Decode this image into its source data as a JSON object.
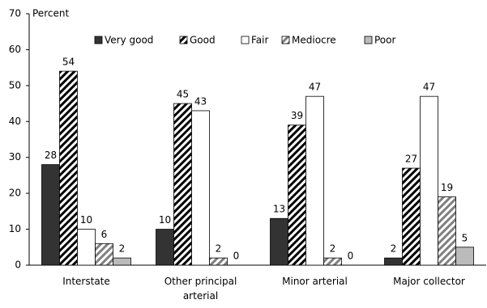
{
  "chart_data": {
    "type": "bar",
    "y_label": "Percent",
    "categories": [
      "Interstate",
      "Other principal arterial",
      "Minor arterial",
      "Major collector"
    ],
    "series": [
      {
        "name": "Very good",
        "color": "#333333",
        "pattern": "solid",
        "values": [
          28,
          10,
          13,
          2
        ]
      },
      {
        "name": "Good",
        "color": "#000000",
        "pattern": "hatch",
        "values": [
          54,
          45,
          39,
          27
        ]
      },
      {
        "name": "Fair",
        "color": "#ffffff",
        "pattern": "solid",
        "values": [
          10,
          43,
          47,
          47
        ]
      },
      {
        "name": "Mediocre",
        "color": "#808080",
        "pattern": "hatch",
        "values": [
          6,
          2,
          2,
          19
        ]
      },
      {
        "name": "Poor",
        "color": "#bbbbbb",
        "pattern": "solid",
        "values": [
          2,
          0,
          0,
          5
        ]
      }
    ],
    "ylim": [
      0,
      70
    ],
    "yticks": [
      0,
      10,
      20,
      30,
      40,
      50,
      60,
      70
    ],
    "legend": "top"
  }
}
